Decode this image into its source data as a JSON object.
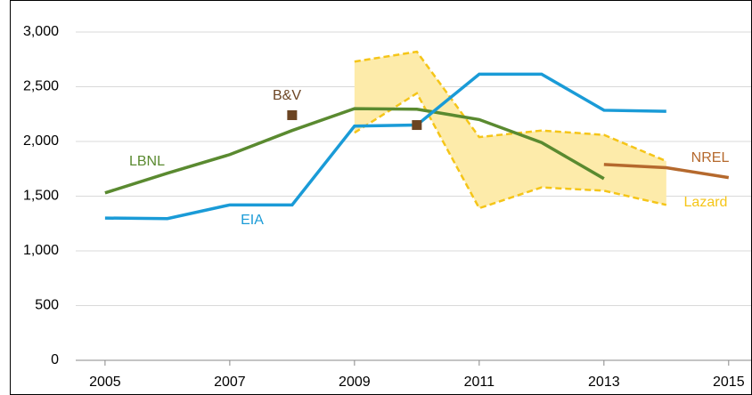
{
  "chart_data": {
    "type": "line",
    "xlim": [
      2004.53,
      2015.36
    ],
    "xticks": [
      2005,
      2007,
      2009,
      2011,
      2013,
      2015
    ],
    "ylim": [
      0,
      3000
    ],
    "yticks": [
      0,
      500,
      {
        "value": 1000,
        "label": "1,000"
      },
      {
        "value": 1500,
        "label": "1,500"
      },
      {
        "value": 2000,
        "label": "2,000"
      },
      {
        "value": 2500,
        "label": "2,500"
      },
      {
        "value": 3000,
        "label": "3,000"
      }
    ],
    "grid": true,
    "series": [
      {
        "name": "LBNL",
        "color": "#5a8a30",
        "style": "solid",
        "x": [
          2005,
          2006,
          2007,
          2008,
          2009,
          2010,
          2011,
          2012,
          2013
        ],
        "values": [
          1530,
          1710,
          1880,
          2100,
          2300,
          2295,
          2200,
          1990,
          1660
        ]
      },
      {
        "name": "EIA",
        "color": "#1a9bd7",
        "style": "solid",
        "x": [
          2005,
          2006,
          2007,
          2008,
          2009,
          2010,
          2011,
          2012,
          2013,
          2014
        ],
        "values": [
          1300,
          1295,
          1420,
          1420,
          2140,
          2150,
          2615,
          2615,
          2285,
          2275
        ]
      },
      {
        "name": "NREL",
        "color": "#b5692d",
        "style": "solid",
        "x": [
          2013,
          2014,
          2015
        ],
        "values": [
          1790,
          1760,
          1670
        ]
      },
      {
        "name": "Lazard",
        "color": "#f5c518",
        "fill": "#fdebaa",
        "style": "band",
        "x": [
          2009,
          2010,
          2011,
          2012,
          2013,
          2014
        ],
        "values": [
          2730,
          2820,
          2040,
          2100,
          2060,
          1820
        ],
        "lower": [
          2080,
          2440,
          1390,
          1580,
          1550,
          1420
        ]
      },
      {
        "name": "B&V",
        "color": "#6b4423",
        "style": "marker",
        "x": [
          2008,
          2010
        ],
        "values": [
          2240,
          2150
        ]
      }
    ]
  }
}
